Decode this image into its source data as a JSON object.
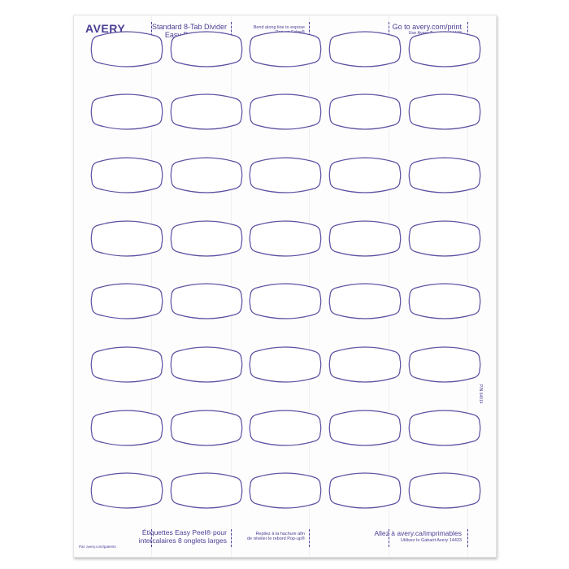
{
  "brand": {
    "logo": "AVERY",
    "color": "#4a3f94"
  },
  "header": {
    "product_line1": "Standard 8-Tab Divider",
    "product_line2": "Easy Peel® Labels",
    "bend_line1": "Bend along line to expose",
    "bend_line2": "Pop-up Edge®",
    "url": "Go to avery.com/print",
    "template": "Use Avery Template 14433"
  },
  "footer": {
    "patents": "Pat: avery.com/patents",
    "product_line1": "Étiquettes Easy Peel® pour",
    "product_line2": "intercalaires 8 onglets larges",
    "bend_line1": "Repliez à la hachure afin",
    "bend_line2": "de révéler le rebord Pop-up®",
    "url": "Allez à avery.ca/imprimables",
    "template": "Utilisez le Gabarit Avery 14433"
  },
  "part_number": "P/N 64014",
  "grid": {
    "rows": 8,
    "columns": 5,
    "outline_color": "#5a4fa0"
  }
}
